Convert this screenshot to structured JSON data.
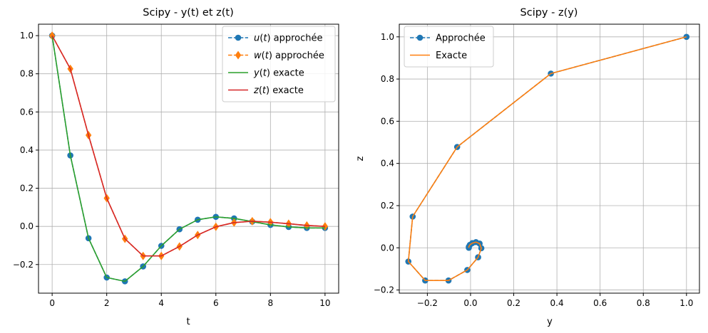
{
  "chart_data": [
    {
      "type": "line",
      "title": "Scipy - y(t) et z(t)",
      "xlabel": "t",
      "ylabel": "",
      "xlim": [
        -0.5,
        10.5
      ],
      "ylim": [
        -0.35,
        1.06
      ],
      "xticks": [
        0,
        2,
        4,
        6,
        8,
        10
      ],
      "xtick_labels": [
        "0",
        "2",
        "4",
        "6",
        "8",
        "10"
      ],
      "yticks": [
        -0.2,
        0.0,
        0.2,
        0.4,
        0.6,
        0.8,
        1.0
      ],
      "ytick_labels": [
        "−0.2",
        "0.0",
        "0.2",
        "0.4",
        "0.6",
        "0.8",
        "1.0"
      ],
      "grid": true,
      "legend_position": "top-right",
      "x": [
        0,
        0.667,
        1.333,
        2.0,
        2.667,
        3.333,
        4.0,
        4.667,
        5.333,
        6.0,
        6.667,
        7.333,
        8.0,
        8.667,
        9.333,
        10.0
      ],
      "series": [
        {
          "name": "u(t) approchée",
          "legend_prefix": "u",
          "legend_suffix": " approchée",
          "color": "#1f77b4",
          "linestyle": "dashed",
          "marker": "circle",
          "values": [
            1.0,
            0.372,
            -0.062,
            -0.268,
            -0.288,
            -0.21,
            -0.102,
            -0.015,
            0.035,
            0.05,
            0.042,
            0.025,
            0.008,
            -0.003,
            -0.008,
            -0.008
          ]
        },
        {
          "name": "w(t) approchée",
          "legend_prefix": "w",
          "legend_suffix": " approchée",
          "color": "#ff7f0e",
          "linestyle": "dashed",
          "marker": "diamond",
          "values": [
            1.0,
            0.826,
            0.478,
            0.148,
            -0.065,
            -0.155,
            -0.155,
            -0.105,
            -0.045,
            -0.002,
            0.02,
            0.027,
            0.022,
            0.014,
            0.005,
            0.0
          ]
        },
        {
          "name": "y(t) exacte",
          "legend_prefix": "y",
          "legend_suffix": " exacte",
          "color": "#2ca02c",
          "linestyle": "solid",
          "marker": "none",
          "values": [
            1.0,
            0.372,
            -0.062,
            -0.268,
            -0.288,
            -0.21,
            -0.102,
            -0.015,
            0.035,
            0.05,
            0.042,
            0.025,
            0.008,
            -0.003,
            -0.008,
            -0.008
          ]
        },
        {
          "name": "z(t) exacte",
          "legend_prefix": "z",
          "legend_suffix": " exacte",
          "color": "#d62728",
          "linestyle": "solid",
          "marker": "none",
          "values": [
            1.0,
            0.826,
            0.478,
            0.148,
            -0.065,
            -0.155,
            -0.155,
            -0.105,
            -0.045,
            -0.002,
            0.02,
            0.027,
            0.022,
            0.014,
            0.005,
            0.0
          ]
        }
      ]
    },
    {
      "type": "line",
      "title": "Scipy - z(y)",
      "xlabel": "y",
      "ylabel": "z",
      "xlim": [
        -0.33,
        1.06
      ],
      "ylim": [
        -0.215,
        1.06
      ],
      "xticks": [
        -0.2,
        0.0,
        0.2,
        0.4,
        0.6,
        0.8,
        1.0
      ],
      "xtick_labels": [
        "−0.2",
        "0.0",
        "0.2",
        "0.4",
        "0.6",
        "0.8",
        "1.0"
      ],
      "yticks": [
        -0.2,
        0.0,
        0.2,
        0.4,
        0.6,
        0.8,
        1.0
      ],
      "ytick_labels": [
        "−0.2",
        "0.0",
        "0.2",
        "0.4",
        "0.6",
        "0.8",
        "1.0"
      ],
      "grid": true,
      "legend_position": "top-left",
      "series": [
        {
          "name": "Approchée",
          "color": "#1f77b4",
          "linestyle": "dashed",
          "marker": "circle",
          "x": [
            1.0,
            0.372,
            -0.062,
            -0.268,
            -0.288,
            -0.21,
            -0.102,
            -0.015,
            0.035,
            0.05,
            0.042,
            0.025,
            0.008,
            -0.003,
            -0.008,
            -0.008
          ],
          "y": [
            1.0,
            0.826,
            0.478,
            0.148,
            -0.065,
            -0.155,
            -0.155,
            -0.105,
            -0.045,
            -0.002,
            0.02,
            0.027,
            0.022,
            0.014,
            0.005,
            0.0
          ]
        },
        {
          "name": "Exacte",
          "color": "#ff7f0e",
          "linestyle": "solid",
          "marker": "none",
          "x": [
            1.0,
            0.372,
            -0.062,
            -0.268,
            -0.288,
            -0.21,
            -0.102,
            -0.015,
            0.035,
            0.05,
            0.042,
            0.025,
            0.008,
            -0.003,
            -0.008,
            -0.008
          ],
          "y": [
            1.0,
            0.826,
            0.478,
            0.148,
            -0.065,
            -0.155,
            -0.155,
            -0.105,
            -0.045,
            -0.002,
            0.02,
            0.027,
            0.022,
            0.014,
            0.005,
            0.0
          ]
        }
      ]
    }
  ]
}
